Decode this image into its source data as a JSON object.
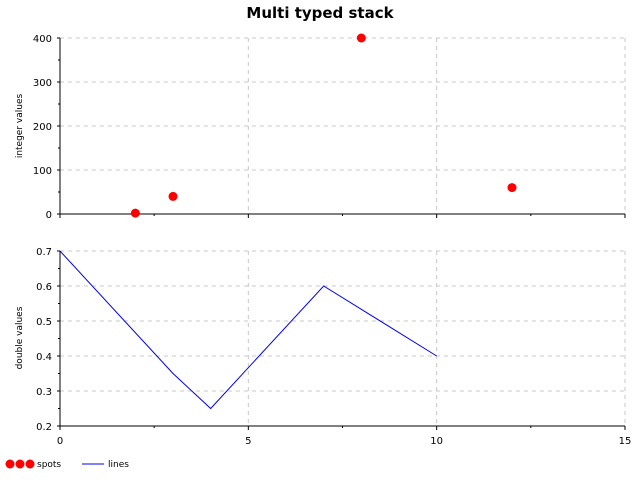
{
  "chart_data": {
    "type": "stacked",
    "title": "Multi typed stack",
    "x_range": [
      0,
      15
    ],
    "x_ticks": [
      0,
      5,
      10,
      15
    ],
    "grid": true,
    "legend_position": "bottom-left",
    "panels": [
      {
        "type": "scatter",
        "ylabel": "integer values",
        "ylim": [
          0,
          400
        ],
        "y_ticks": [
          0,
          100,
          200,
          300,
          400
        ],
        "series": [
          {
            "name": "spots",
            "color": "#ff0000",
            "points": [
              {
                "x": 2,
                "y": 2
              },
              {
                "x": 3,
                "y": 40
              },
              {
                "x": 8,
                "y": 400
              },
              {
                "x": 12,
                "y": 60
              }
            ]
          }
        ]
      },
      {
        "type": "line",
        "ylabel": "double values",
        "ylim": [
          0.2,
          0.7
        ],
        "y_ticks": [
          0.2,
          0.3,
          0.4,
          0.5,
          0.6,
          0.7
        ],
        "series": [
          {
            "name": "lines",
            "color": "#0000ff",
            "points": [
              {
                "x": 0,
                "y": 0.7
              },
              {
                "x": 3,
                "y": 0.35
              },
              {
                "x": 4,
                "y": 0.25
              },
              {
                "x": 7,
                "y": 0.6
              },
              {
                "x": 10,
                "y": 0.4
              }
            ]
          }
        ]
      }
    ],
    "legend": [
      {
        "label": "spots",
        "color": "#ff0000",
        "marker": "dot"
      },
      {
        "label": "lines",
        "color": "#0000ff",
        "marker": "line"
      }
    ]
  }
}
